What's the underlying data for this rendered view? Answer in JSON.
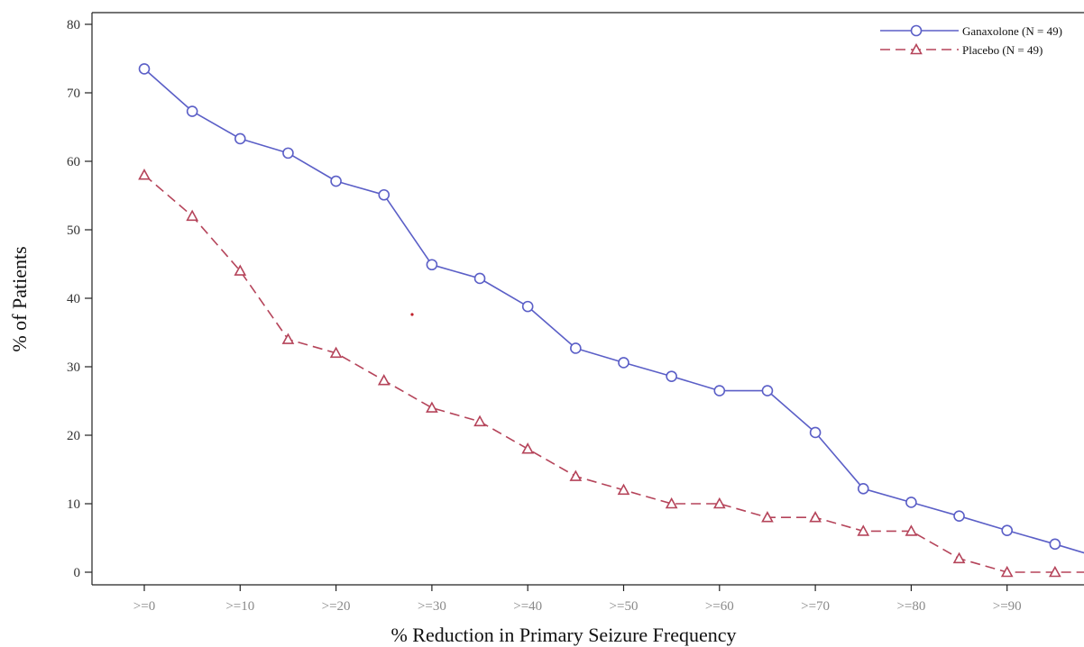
{
  "chart_data": {
    "type": "line",
    "title": "",
    "xlabel": "% Reduction in Primary Seizure Frequency",
    "ylabel": "% of Patients",
    "x": [
      0,
      5,
      10,
      15,
      20,
      25,
      30,
      35,
      40,
      45,
      50,
      55,
      60,
      65,
      70,
      75,
      80,
      85,
      90,
      95,
      100
    ],
    "x_tick_labels": [
      ">=0",
      ">=10",
      ">=20",
      ">=30",
      ">=40",
      ">=50",
      ">=60",
      ">=70",
      ">=80",
      ">=90"
    ],
    "x_tick_values": [
      0,
      10,
      20,
      30,
      40,
      50,
      60,
      70,
      80,
      90
    ],
    "y_ticks": [
      0,
      10,
      20,
      30,
      40,
      50,
      60,
      70,
      80
    ],
    "ylim": [
      0,
      80
    ],
    "grid": false,
    "legend_position": "top-right",
    "series": [
      {
        "name": "Ganaxolone (N = 49)",
        "color": "#5b5fc7",
        "marker": "circle",
        "dash": "solid",
        "values": [
          73.5,
          67.3,
          63.3,
          61.2,
          57.1,
          55.1,
          44.9,
          42.9,
          38.8,
          32.7,
          30.6,
          28.6,
          26.5,
          26.5,
          20.4,
          12.2,
          10.2,
          8.2,
          6.1,
          4.1,
          2.0
        ]
      },
      {
        "name": "Placebo (N = 49)",
        "color": "#b5445a",
        "marker": "triangle",
        "dash": "dashed",
        "values": [
          58,
          52,
          44,
          34,
          32,
          28,
          24,
          22,
          18,
          14,
          12,
          10,
          10,
          8,
          8,
          6,
          6,
          2,
          0,
          0,
          0
        ]
      }
    ]
  }
}
